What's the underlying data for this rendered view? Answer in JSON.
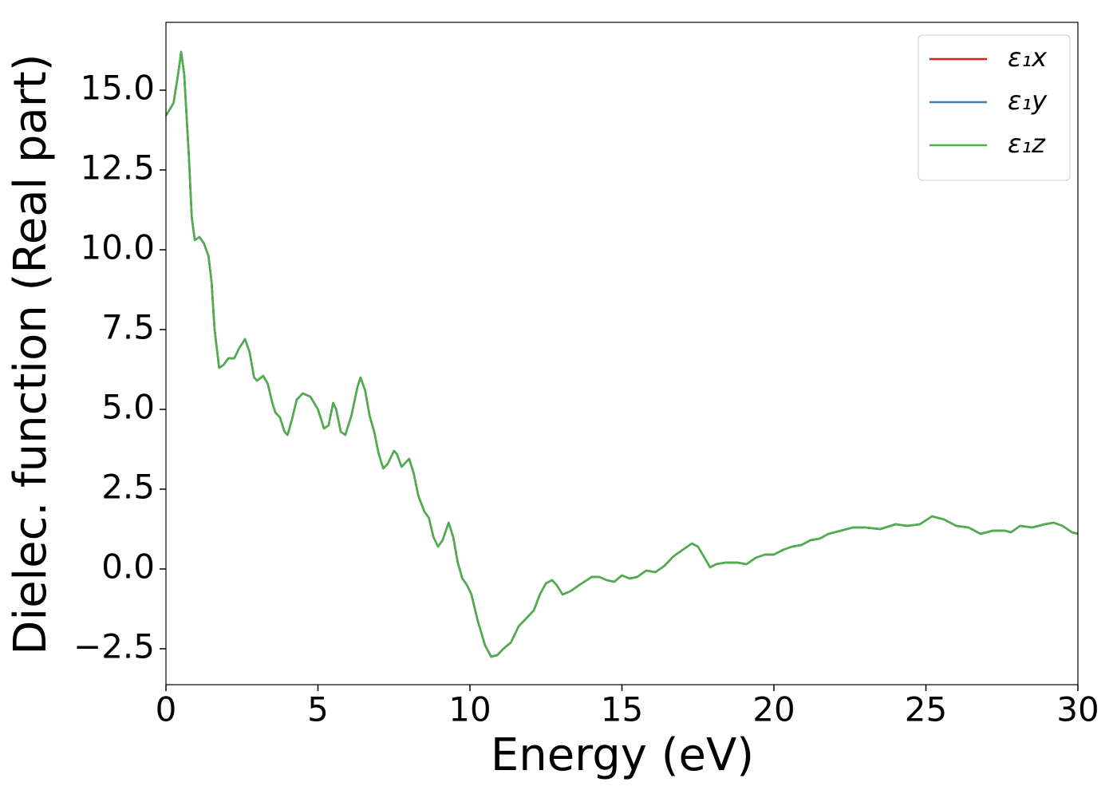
{
  "chart_data": {
    "type": "line",
    "x_label": "Energy (eV)",
    "y_label": "Dielec. function (Real part)",
    "x": [
      0,
      0.25,
      0.4,
      0.5,
      0.6,
      0.75,
      0.85,
      0.95,
      1.1,
      1.25,
      1.4,
      1.5,
      1.6,
      1.75,
      1.9,
      2.05,
      2.25,
      2.4,
      2.6,
      2.75,
      2.9,
      3.0,
      3.2,
      3.35,
      3.5,
      3.6,
      3.75,
      3.9,
      4.0,
      4.15,
      4.3,
      4.5,
      4.75,
      5.0,
      5.2,
      5.35,
      5.5,
      5.6,
      5.75,
      5.9,
      6.1,
      6.3,
      6.4,
      6.55,
      6.7,
      6.85,
      7.0,
      7.15,
      7.3,
      7.5,
      7.6,
      7.75,
      7.85,
      8.0,
      8.15,
      8.3,
      8.5,
      8.65,
      8.8,
      8.95,
      9.1,
      9.3,
      9.45,
      9.6,
      9.75,
      9.9,
      10.05,
      10.25,
      10.5,
      10.7,
      10.9,
      11.1,
      11.35,
      11.6,
      11.85,
      12.1,
      12.3,
      12.5,
      12.7,
      12.85,
      13.05,
      13.3,
      13.6,
      13.85,
      14.0,
      14.25,
      14.5,
      14.75,
      15.0,
      15.25,
      15.5,
      15.8,
      16.1,
      16.4,
      16.7,
      17.0,
      17.3,
      17.5,
      17.75,
      17.9,
      18.1,
      18.4,
      18.8,
      19.1,
      19.4,
      19.7,
      20.0,
      20.3,
      20.6,
      20.9,
      21.2,
      21.5,
      21.8,
      22.2,
      22.6,
      23.0,
      23.5,
      24.0,
      24.4,
      24.8,
      25.2,
      25.6,
      26.0,
      26.4,
      26.8,
      27.2,
      27.6,
      27.8,
      28.1,
      28.5,
      28.9,
      29.2,
      29.5,
      29.8,
      30.0
    ],
    "series": [
      {
        "name": "ε₁x",
        "color": "#e41a1c",
        "values": [
          14.2,
          14.6,
          15.5,
          16.2,
          15.5,
          13,
          11,
          10.3,
          10.4,
          10.2,
          9.8,
          9,
          7.5,
          6.3,
          6.4,
          6.6,
          6.6,
          6.9,
          7.2,
          6.8,
          6.0,
          5.9,
          6.05,
          5.8,
          5.2,
          4.9,
          4.75,
          4.3,
          4.2,
          4.7,
          5.3,
          5.5,
          5.4,
          5.0,
          4.4,
          4.5,
          5.2,
          5.0,
          4.3,
          4.2,
          4.8,
          5.7,
          6.0,
          5.6,
          4.8,
          4.3,
          3.6,
          3.15,
          3.3,
          3.7,
          3.6,
          3.2,
          3.3,
          3.45,
          3.0,
          2.3,
          1.8,
          1.6,
          1.0,
          0.7,
          0.9,
          1.45,
          1.0,
          0.2,
          -0.3,
          -0.5,
          -0.8,
          -1.6,
          -2.4,
          -2.75,
          -2.7,
          -2.5,
          -2.3,
          -1.8,
          -1.55,
          -1.3,
          -0.8,
          -0.45,
          -0.35,
          -0.5,
          -0.8,
          -0.7,
          -0.5,
          -0.35,
          -0.25,
          -0.25,
          -0.35,
          -0.4,
          -0.2,
          -0.3,
          -0.25,
          -0.05,
          -0.1,
          0.1,
          0.4,
          0.6,
          0.8,
          0.7,
          0.3,
          0.05,
          0.15,
          0.2,
          0.2,
          0.15,
          0.35,
          0.45,
          0.45,
          0.6,
          0.7,
          0.75,
          0.9,
          0.95,
          1.1,
          1.2,
          1.3,
          1.3,
          1.25,
          1.4,
          1.35,
          1.4,
          1.65,
          1.55,
          1.35,
          1.3,
          1.1,
          1.2,
          1.2,
          1.15,
          1.35,
          1.3,
          1.4,
          1.45,
          1.35,
          1.15,
          1.1
        ]
      },
      {
        "name": "ε₁y",
        "color": "#377eb8",
        "values": [
          14.2,
          14.6,
          15.5,
          16.2,
          15.5,
          13,
          11,
          10.3,
          10.4,
          10.2,
          9.8,
          9,
          7.5,
          6.3,
          6.4,
          6.6,
          6.6,
          6.9,
          7.2,
          6.8,
          6.0,
          5.9,
          6.05,
          5.8,
          5.2,
          4.9,
          4.75,
          4.3,
          4.2,
          4.7,
          5.3,
          5.5,
          5.4,
          5.0,
          4.4,
          4.5,
          5.2,
          5.0,
          4.3,
          4.2,
          4.8,
          5.7,
          6.0,
          5.6,
          4.8,
          4.3,
          3.6,
          3.15,
          3.3,
          3.7,
          3.6,
          3.2,
          3.3,
          3.45,
          3.0,
          2.3,
          1.8,
          1.6,
          1.0,
          0.7,
          0.9,
          1.45,
          1.0,
          0.2,
          -0.3,
          -0.5,
          -0.8,
          -1.6,
          -2.4,
          -2.75,
          -2.7,
          -2.5,
          -2.3,
          -1.8,
          -1.55,
          -1.3,
          -0.8,
          -0.45,
          -0.35,
          -0.5,
          -0.8,
          -0.7,
          -0.5,
          -0.35,
          -0.25,
          -0.25,
          -0.35,
          -0.4,
          -0.2,
          -0.3,
          -0.25,
          -0.05,
          -0.1,
          0.1,
          0.4,
          0.6,
          0.8,
          0.7,
          0.3,
          0.05,
          0.15,
          0.2,
          0.2,
          0.15,
          0.35,
          0.45,
          0.45,
          0.6,
          0.7,
          0.75,
          0.9,
          0.95,
          1.1,
          1.2,
          1.3,
          1.3,
          1.25,
          1.4,
          1.35,
          1.4,
          1.65,
          1.55,
          1.35,
          1.3,
          1.1,
          1.2,
          1.2,
          1.15,
          1.35,
          1.3,
          1.4,
          1.45,
          1.35,
          1.15,
          1.1
        ]
      },
      {
        "name": "ε₁z",
        "color": "#4daf4a",
        "values": [
          14.2,
          14.6,
          15.5,
          16.2,
          15.5,
          13,
          11,
          10.3,
          10.4,
          10.2,
          9.8,
          9,
          7.5,
          6.3,
          6.4,
          6.6,
          6.6,
          6.9,
          7.2,
          6.8,
          6.0,
          5.9,
          6.05,
          5.8,
          5.2,
          4.9,
          4.75,
          4.3,
          4.2,
          4.7,
          5.3,
          5.5,
          5.4,
          5.0,
          4.4,
          4.5,
          5.2,
          5.0,
          4.3,
          4.2,
          4.8,
          5.7,
          6.0,
          5.6,
          4.8,
          4.3,
          3.6,
          3.15,
          3.3,
          3.7,
          3.6,
          3.2,
          3.3,
          3.45,
          3.0,
          2.3,
          1.8,
          1.6,
          1.0,
          0.7,
          0.9,
          1.45,
          1.0,
          0.2,
          -0.3,
          -0.5,
          -0.8,
          -1.6,
          -2.4,
          -2.75,
          -2.7,
          -2.5,
          -2.3,
          -1.8,
          -1.55,
          -1.3,
          -0.8,
          -0.45,
          -0.35,
          -0.5,
          -0.8,
          -0.7,
          -0.5,
          -0.35,
          -0.25,
          -0.25,
          -0.35,
          -0.4,
          -0.2,
          -0.3,
          -0.25,
          -0.05,
          -0.1,
          0.1,
          0.4,
          0.6,
          0.8,
          0.7,
          0.3,
          0.05,
          0.15,
          0.2,
          0.2,
          0.15,
          0.35,
          0.45,
          0.45,
          0.6,
          0.7,
          0.75,
          0.9,
          0.95,
          1.1,
          1.2,
          1.3,
          1.3,
          1.25,
          1.4,
          1.35,
          1.4,
          1.65,
          1.55,
          1.35,
          1.3,
          1.1,
          1.2,
          1.2,
          1.15,
          1.35,
          1.3,
          1.4,
          1.45,
          1.35,
          1.15,
          1.1
        ]
      }
    ],
    "xlim": [
      0,
      30
    ],
    "xticks": [
      0,
      5,
      10,
      15,
      20,
      25,
      30
    ],
    "ylim": [
      -3.625,
      17.125
    ],
    "yticks": [
      {
        "value": -2.5,
        "label": "−2.5"
      },
      {
        "value": 0,
        "label": "0.0"
      },
      2.5,
      {
        "value": 5,
        "label": "5.0"
      },
      7.5,
      {
        "value": 10,
        "label": "10.0"
      },
      12.5,
      {
        "value": 15,
        "label": "15.0"
      }
    ],
    "grid": false,
    "legend": "upper right"
  }
}
